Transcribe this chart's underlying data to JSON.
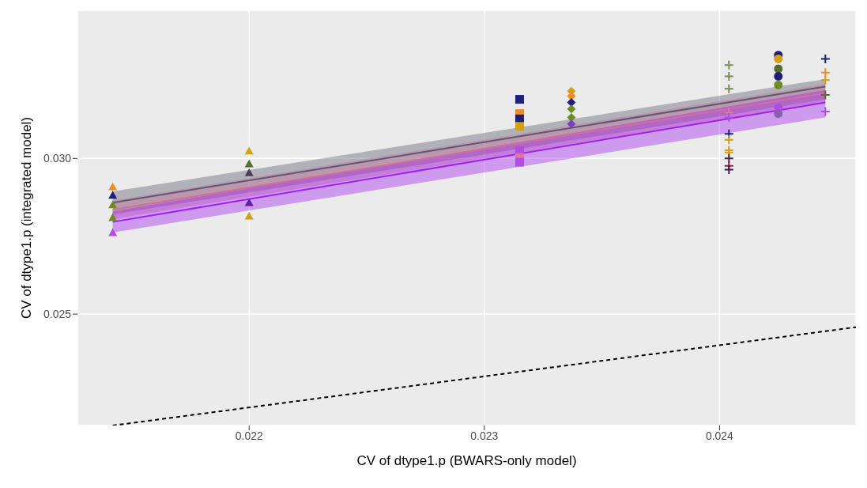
{
  "chart_data": {
    "type": "scatter",
    "xlabel": "CV of dtype1.p (BWARS-only model)",
    "ylabel": "CV of dtype1.p (integrated model)",
    "xlim": [
      0.02127,
      0.02458
    ],
    "ylim": [
      0.02142,
      0.03476
    ],
    "xticks": [
      0.022,
      0.023,
      0.024
    ],
    "yticks": [
      0.025,
      {
        "value": 0.03,
        "label": "0.030"
      }
    ],
    "grid": true,
    "legend": false,
    "series": [
      {
        "marker": "triangle",
        "x": [
          0.02142,
          0.02142,
          0.02142,
          0.02142,
          0.02142
        ],
        "values": [
          0.02909,
          0.02882,
          0.02851,
          0.0281,
          0.02762
        ],
        "colors": [
          "#f08a24",
          "#1f1f7a",
          "#6b8e23",
          "#6b8e23",
          "#b04ee0"
        ]
      },
      {
        "marker": "triangle",
        "x": [
          0.022,
          0.022,
          0.022,
          0.022,
          0.022
        ],
        "values": [
          0.03024,
          0.02983,
          0.02954,
          0.02858,
          0.02815
        ],
        "colors": [
          "#d4a017",
          "#556b2f",
          "#4b3b5a",
          "#5b1fa0",
          "#d4a017"
        ]
      },
      {
        "marker": "square",
        "x": [
          0.02315,
          0.02315,
          0.02315,
          0.02315,
          0.02315,
          0.02315,
          0.02315
        ],
        "values": [
          0.0319,
          0.03144,
          0.03127,
          0.03103,
          0.03026,
          0.03002,
          0.02988
        ],
        "colors": [
          "#1f1f7a",
          "#f08a24",
          "#1f1f7a",
          "#d4a017",
          "#b04ee0",
          "#e377a0",
          "#b04ee0"
        ]
      },
      {
        "marker": "diamond",
        "x": [
          0.02337,
          0.02337,
          0.02337,
          0.02337,
          0.02337,
          0.02337
        ],
        "values": [
          0.03216,
          0.032,
          0.0318,
          0.03159,
          0.03132,
          0.03111
        ],
        "colors": [
          "#d4a017",
          "#f08a24",
          "#1f1f7a",
          "#6b8e23",
          "#6b8e23",
          "#7b3fc0"
        ]
      },
      {
        "marker": "cross",
        "x": [
          0.02404,
          0.02404,
          0.02404,
          0.02404,
          0.02404,
          0.02404,
          0.02404,
          0.02404,
          0.02404,
          0.02404,
          0.02404,
          0.02404
        ],
        "values": [
          0.033,
          0.03264,
          0.03224,
          0.03147,
          0.03132,
          0.03079,
          0.0306,
          0.03026,
          0.03019,
          0.03,
          0.02976,
          0.02964
        ],
        "colors": [
          "#7a8a55",
          "#7a8a55",
          "#7a8a55",
          "#e377a0",
          "#b04ee0",
          "#1f1f7a",
          "#d4a017",
          "#d4a017",
          "#d4a017",
          "#3a2a4a",
          "#a0103a",
          "#3a1a5a"
        ]
      },
      {
        "marker": "circle",
        "x": [
          0.02425,
          0.02425,
          0.02425,
          0.02425,
          0.02425,
          0.02425,
          0.02425
        ],
        "values": [
          0.03332,
          0.0332,
          0.03288,
          0.03264,
          0.03236,
          0.03163,
          0.03144
        ],
        "colors": [
          "#1f1f7a",
          "#d4a017",
          "#556b2f",
          "#1f1f7a",
          "#6b8e23",
          "#b04ee0",
          "#8a5fb0"
        ]
      },
      {
        "marker": "cross",
        "x": [
          0.02445,
          0.02445,
          0.02445,
          0.02445,
          0.02445
        ],
        "values": [
          0.0332,
          0.03276,
          0.03252,
          0.03204,
          0.03151
        ],
        "colors": [
          "#1f1f7a",
          "#f08a24",
          "#d4a017",
          "#556b2f",
          "#b04ee0"
        ]
      },
      {
        "type": "line",
        "color": "#5a5a70",
        "x": [
          0.02142,
          0.02445
        ],
        "values": [
          0.02858,
          0.03231
        ],
        "lower": [
          0.0282,
          0.0319
        ],
        "upper": [
          0.02894,
          0.03255
        ]
      },
      {
        "type": "line",
        "color": "#d0709a",
        "x": [
          0.02142,
          0.02445
        ],
        "values": [
          0.02835,
          0.0321
        ],
        "lower": [
          0.02805,
          0.0318
        ],
        "upper": [
          0.02865,
          0.0324
        ]
      },
      {
        "type": "line",
        "color": "#a020f0",
        "x": [
          0.02142,
          0.02445
        ],
        "values": [
          0.02796,
          0.0318
        ],
        "lower": [
          0.02762,
          0.03132
        ],
        "upper": [
          0.0283,
          0.0322
        ]
      },
      {
        "type": "line",
        "color": "#000000",
        "line_style": "dashed",
        "x": [
          0.02142,
          0.02458
        ],
        "values": [
          0.02142,
          0.02458
        ]
      }
    ]
  }
}
